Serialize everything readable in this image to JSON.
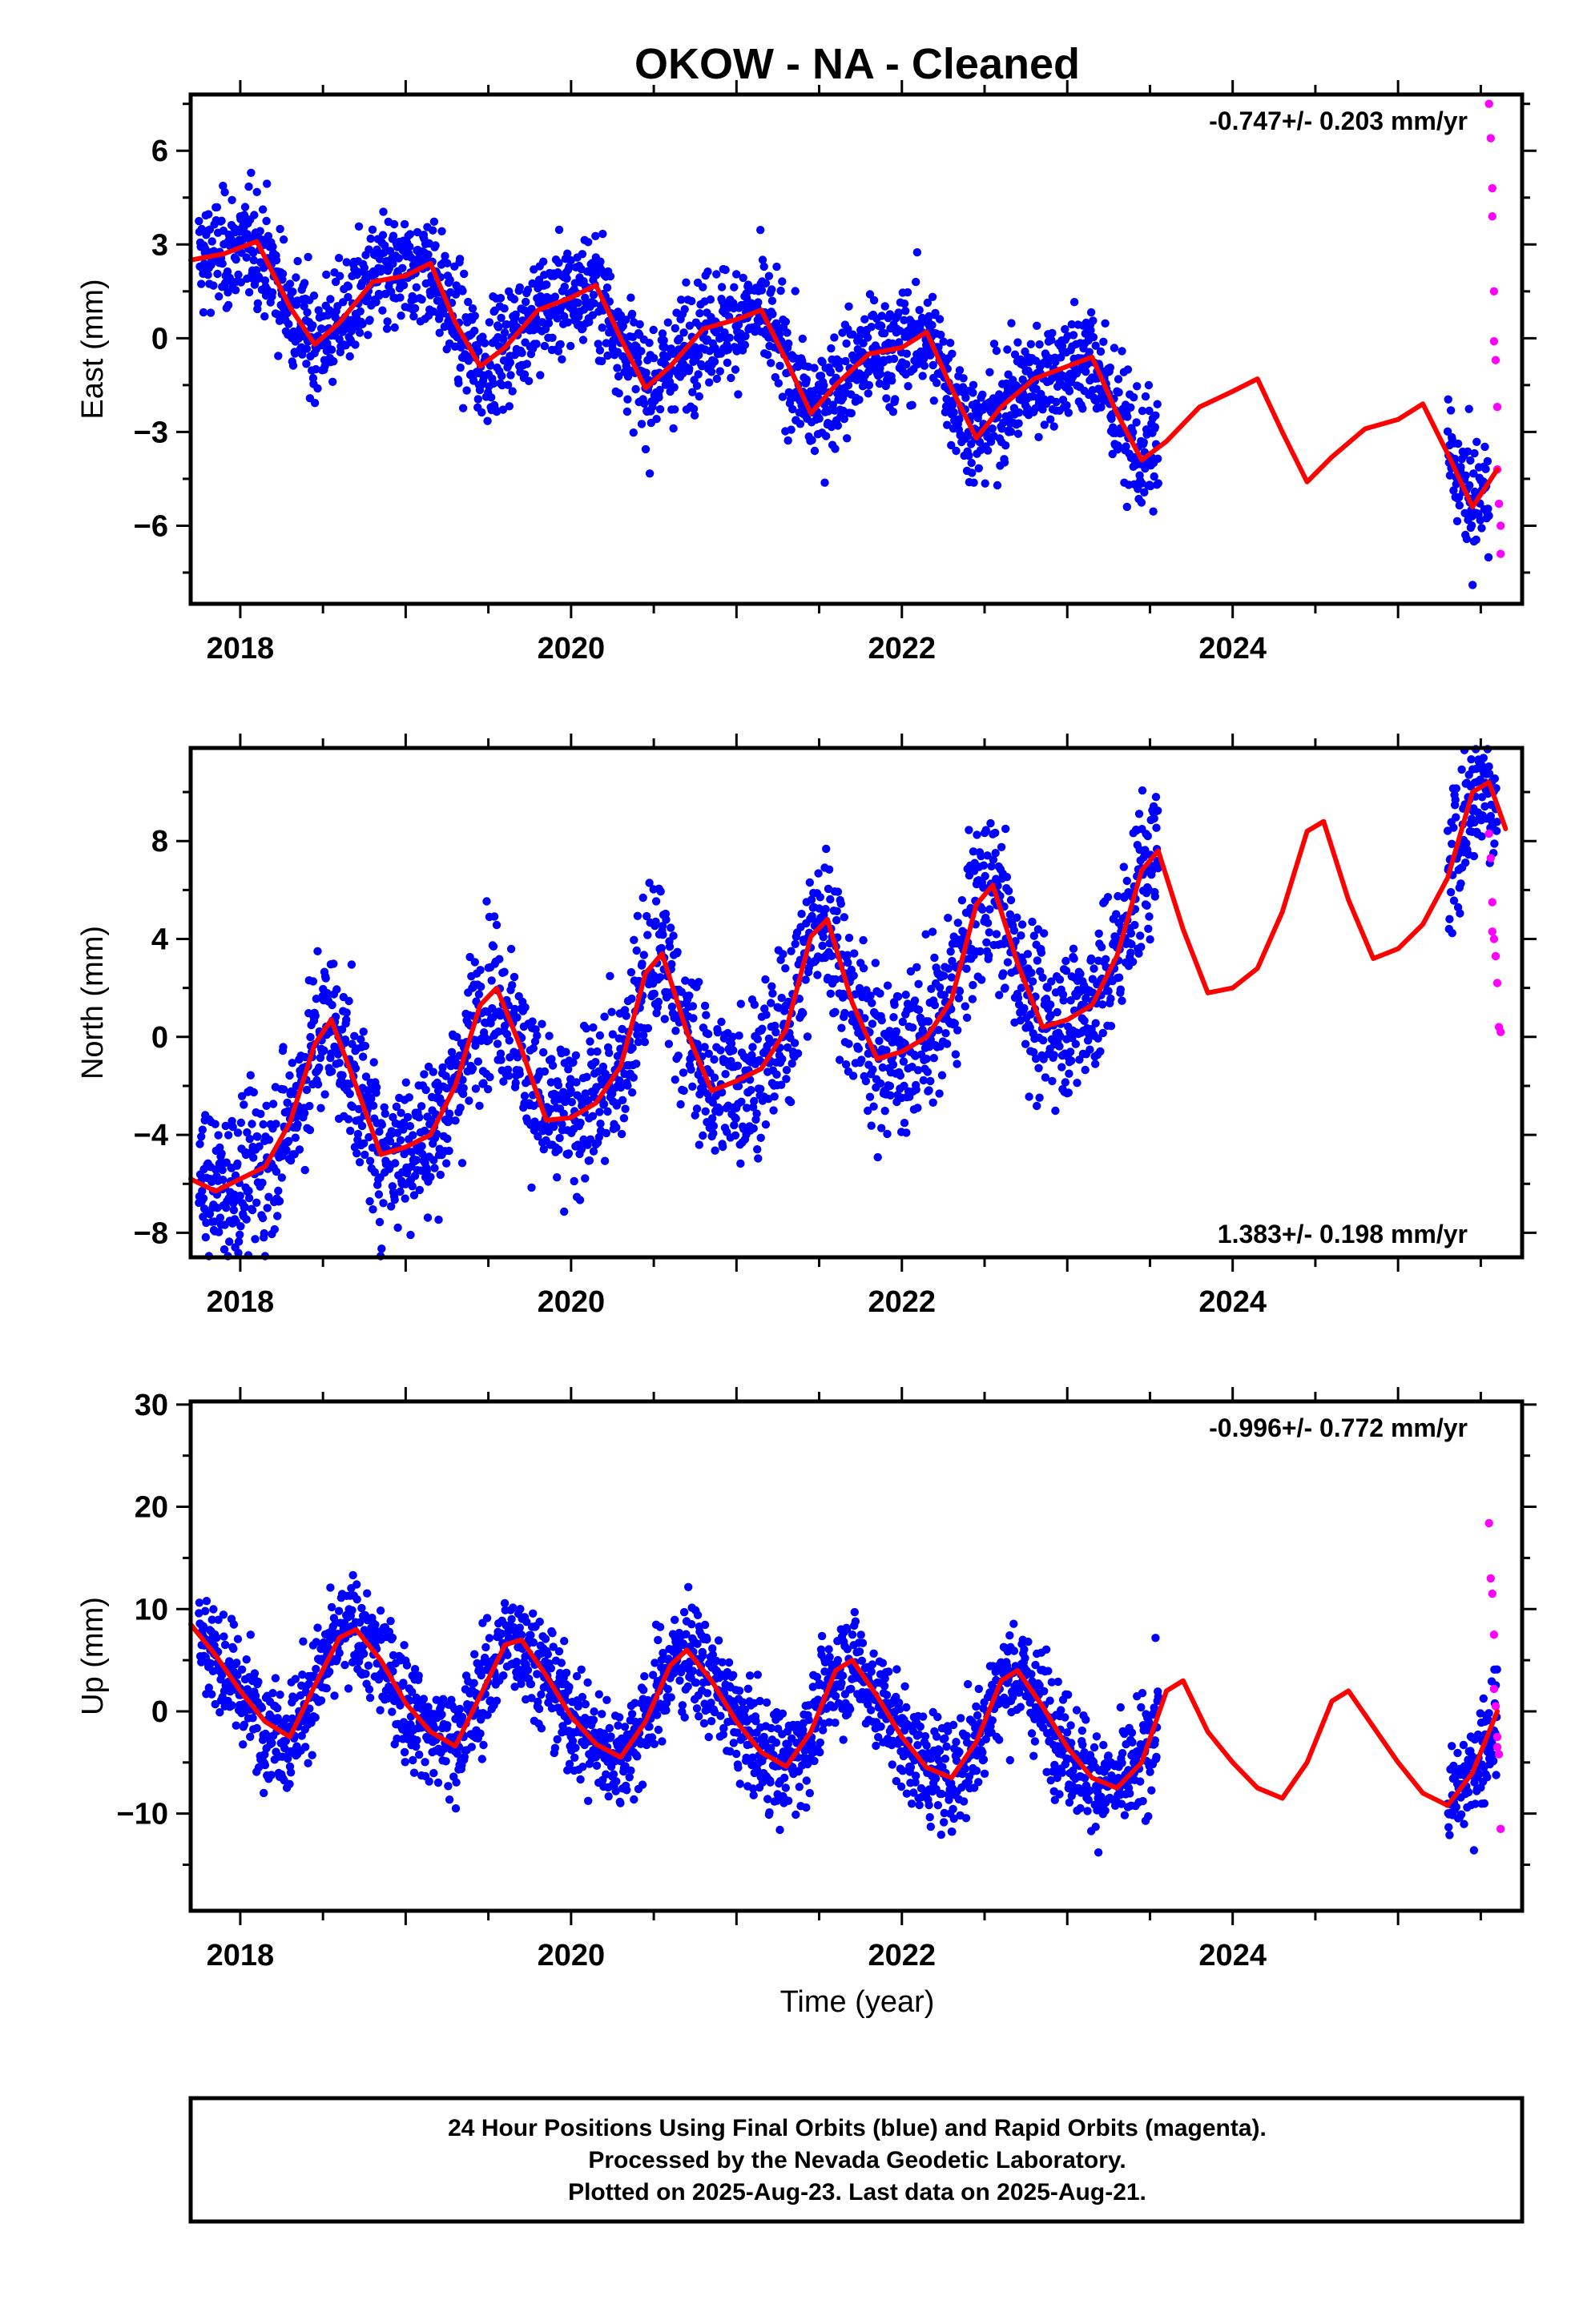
{
  "title": "OKOW  - NA - Cleaned",
  "colors": {
    "final": "#0000ff",
    "rapid": "#ff00ff",
    "model": "#ff0000",
    "frame": "#000000"
  },
  "chart_data": [
    {
      "type": "scatter",
      "name": "east",
      "ylabel": "East (mm)",
      "xlabel": "",
      "xlim": [
        2017.7,
        2025.75
      ],
      "ylim": [
        -8.5,
        7.8
      ],
      "xticks": [
        2018,
        2020,
        2022,
        2024
      ],
      "xtick_labels": [
        "2018",
        "2020",
        "2022",
        "2024"
      ],
      "yticks": [
        6,
        3,
        0,
        -3,
        -6
      ],
      "ytick_labels": [
        "6",
        "3",
        "0",
        "−3",
        "−6"
      ],
      "rate_text": "-0.747+/- 0.203 mm/yr",
      "rate_position": "top-right",
      "model": {
        "x": [
          2017.7,
          2017.9,
          2018.1,
          2018.3,
          2018.45,
          2018.6,
          2018.8,
          2019.0,
          2019.15,
          2019.3,
          2019.45,
          2019.6,
          2019.8,
          2020.0,
          2020.15,
          2020.3,
          2020.45,
          2020.6,
          2020.8,
          2021.0,
          2021.15,
          2021.3,
          2021.45,
          2021.6,
          2021.8,
          2022.0,
          2022.15,
          2022.3,
          2022.45,
          2022.6,
          2022.8,
          2023.0,
          2023.15,
          2023.3,
          2023.45,
          2023.6,
          2023.8,
          2024.0,
          2024.15,
          2024.3,
          2024.45,
          2024.6,
          2024.8,
          2025.0,
          2025.15,
          2025.3,
          2025.45,
          2025.6
        ],
        "y": [
          2.5,
          2.7,
          3.1,
          1.0,
          -0.2,
          0.5,
          1.8,
          2.0,
          2.4,
          0.5,
          -0.9,
          -0.3,
          0.9,
          1.3,
          1.7,
          0.0,
          -1.6,
          -0.9,
          0.3,
          0.6,
          0.9,
          -0.7,
          -2.4,
          -1.5,
          -0.5,
          -0.3,
          0.2,
          -1.6,
          -3.2,
          -2.2,
          -1.3,
          -0.9,
          -0.6,
          -2.4,
          -3.9,
          -3.3,
          -2.2,
          -1.7,
          -1.3,
          -3.0,
          -4.6,
          -3.8,
          -2.9,
          -2.6,
          -2.1,
          -3.7,
          -5.4,
          -4.2
        ]
      },
      "final_range": [
        2017.75,
        2023.55
      ],
      "final_range2": [
        2025.3,
        2025.55
      ],
      "rapid": {
        "x": [
          2025.55,
          2025.56,
          2025.57,
          2025.57,
          2025.58,
          2025.58,
          2025.59,
          2025.6,
          2025.6,
          2025.61,
          2025.62,
          2025.62
        ],
        "y": [
          7.5,
          6.4,
          4.8,
          3.9,
          1.5,
          -0.1,
          -0.7,
          -2.2,
          -4.2,
          -5.3,
          -6.0,
          -6.9
        ]
      }
    },
    {
      "type": "scatter",
      "name": "north",
      "ylabel": "North (mm)",
      "xlabel": "",
      "xlim": [
        2017.7,
        2025.75
      ],
      "ylim": [
        -9,
        11.8
      ],
      "xticks": [
        2018,
        2020,
        2022,
        2024
      ],
      "xtick_labels": [
        "2018",
        "2020",
        "2022",
        "2024"
      ],
      "yticks": [
        8,
        4,
        0,
        -4,
        -8
      ],
      "ytick_labels": [
        "8",
        "4",
        "0",
        "−4",
        "−8"
      ],
      "rate_text": "1.383+/- 0.198 mm/yr",
      "rate_position": "bottom-right",
      "model": {
        "x": [
          2017.7,
          2017.85,
          2018.0,
          2018.15,
          2018.3,
          2018.45,
          2018.55,
          2018.7,
          2018.85,
          2019.0,
          2019.15,
          2019.3,
          2019.45,
          2019.55,
          2019.7,
          2019.85,
          2020.0,
          2020.15,
          2020.3,
          2020.45,
          2020.55,
          2020.7,
          2020.85,
          2021.0,
          2021.15,
          2021.3,
          2021.45,
          2021.55,
          2021.7,
          2021.85,
          2022.0,
          2022.15,
          2022.3,
          2022.45,
          2022.55,
          2022.7,
          2022.85,
          2023.0,
          2023.15,
          2023.3,
          2023.45,
          2023.55,
          2023.7,
          2023.85,
          2024.0,
          2024.15,
          2024.3,
          2024.45,
          2024.55,
          2024.7,
          2024.85,
          2025.0,
          2025.15,
          2025.3,
          2025.45,
          2025.55,
          2025.65
        ],
        "y": [
          -5.8,
          -6.3,
          -5.8,
          -5.3,
          -3.5,
          -0.3,
          0.7,
          -2.0,
          -4.8,
          -4.5,
          -4.0,
          -2.0,
          1.3,
          2.0,
          -0.5,
          -3.4,
          -3.3,
          -2.7,
          -1.2,
          2.6,
          3.4,
          0.2,
          -2.2,
          -1.8,
          -1.3,
          0.3,
          4.1,
          4.8,
          1.4,
          -0.9,
          -0.6,
          0.0,
          1.5,
          5.4,
          6.2,
          3.0,
          0.4,
          0.7,
          1.3,
          3.3,
          6.8,
          7.6,
          4.4,
          1.8,
          2.0,
          2.8,
          5.1,
          8.4,
          8.8,
          5.6,
          3.2,
          3.6,
          4.6,
          6.5,
          10.0,
          10.4,
          8.5
        ]
      },
      "final_range": [
        2017.75,
        2023.55
      ],
      "final_range2": [
        2025.3,
        2025.6
      ],
      "rapid": {
        "x": [
          2025.55,
          2025.56,
          2025.57,
          2025.57,
          2025.58,
          2025.59,
          2025.6,
          2025.61,
          2025.62
        ],
        "y": [
          8.3,
          7.3,
          5.5,
          4.3,
          4.0,
          3.3,
          2.2,
          0.4,
          0.2
        ]
      }
    },
    {
      "type": "scatter",
      "name": "up",
      "ylabel": "Up (mm)",
      "xlabel": "Time (year)",
      "xlim": [
        2017.7,
        2025.75
      ],
      "ylim": [
        -19.5,
        30.3
      ],
      "xticks": [
        2018,
        2020,
        2022,
        2024
      ],
      "xtick_labels": [
        "2018",
        "2020",
        "2022",
        "2024"
      ],
      "yticks": [
        30,
        20,
        10,
        0,
        -10
      ],
      "ytick_labels": [
        "30",
        "20",
        "10",
        "0",
        "−10"
      ],
      "rate_text": "-0.996+/- 0.772 mm/yr",
      "rate_position": "top-right",
      "model": {
        "x": [
          2017.7,
          2017.85,
          2018.0,
          2018.15,
          2018.3,
          2018.45,
          2018.6,
          2018.7,
          2018.85,
          2019.0,
          2019.15,
          2019.3,
          2019.45,
          2019.6,
          2019.7,
          2019.85,
          2020.0,
          2020.15,
          2020.3,
          2020.45,
          2020.6,
          2020.7,
          2020.85,
          2021.0,
          2021.15,
          2021.3,
          2021.45,
          2021.6,
          2021.7,
          2021.85,
          2022.0,
          2022.15,
          2022.3,
          2022.45,
          2022.6,
          2022.7,
          2022.85,
          2023.0,
          2023.15,
          2023.3,
          2023.45,
          2023.6,
          2023.7,
          2023.85,
          2024.0,
          2024.15,
          2024.3,
          2024.45,
          2024.6,
          2024.7,
          2024.85,
          2025.0,
          2025.15,
          2025.3,
          2025.45,
          2025.6
        ],
        "y": [
          8.5,
          5.5,
          2.0,
          -1.0,
          -2.5,
          2.5,
          7.2,
          8.0,
          5.0,
          0.8,
          -2.0,
          -3.4,
          1.5,
          6.5,
          7.0,
          3.5,
          -0.5,
          -3.2,
          -4.5,
          -1.0,
          4.5,
          6.0,
          3.0,
          -1.0,
          -4.0,
          -5.4,
          -2.0,
          4.0,
          5.0,
          1.5,
          -2.5,
          -5.5,
          -6.5,
          -3.0,
          3.0,
          4.0,
          0.5,
          -3.5,
          -6.5,
          -7.5,
          -5.0,
          2.0,
          3.0,
          -2.0,
          -5.0,
          -7.5,
          -8.5,
          -5.0,
          1.0,
          2.0,
          -1.5,
          -5.0,
          -8.0,
          -9.2,
          -6.0,
          0.0
        ]
      },
      "final_range": [
        2017.75,
        2023.55
      ],
      "final_range2": [
        2025.3,
        2025.6
      ],
      "rapid": {
        "x": [
          2025.55,
          2025.56,
          2025.57,
          2025.58,
          2025.58,
          2025.59,
          2025.6,
          2025.6,
          2025.61,
          2025.62
        ],
        "y": [
          18.4,
          13.0,
          11.5,
          7.5,
          2.2,
          0.5,
          -2.5,
          -3.5,
          -4.2,
          -11.5
        ]
      }
    }
  ],
  "footer": {
    "line1": "24 Hour Positions Using Final Orbits (blue) and Rapid Orbits (magenta).",
    "line2": "Processed by the Nevada Geodetic Laboratory.",
    "line3": "Plotted on 2025-Aug-23. Last data on 2025-Aug-21."
  }
}
